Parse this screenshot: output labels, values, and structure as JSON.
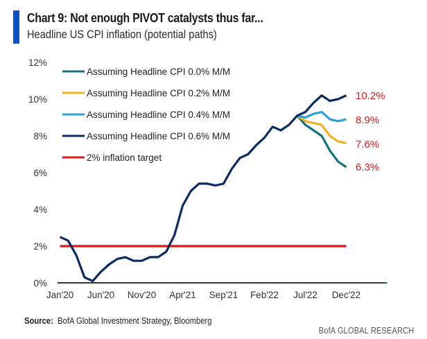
{
  "header": {
    "title": "Chart 9: Not enough PIVOT catalysts thus far...",
    "subtitle": "Headline US CPI inflation (potential paths)",
    "accent_color": "#0a52c8"
  },
  "footer": {
    "source_label": "Source:",
    "source_text": "BofA Global Investment Strategy, Bloomberg",
    "brand": "BofA GLOBAL RESEARCH"
  },
  "chart_data": {
    "type": "line",
    "title": "Chart 9: Not enough PIVOT catalysts thus far...",
    "subtitle": "Headline US CPI inflation (potential paths)",
    "xlabel": "",
    "ylabel": "",
    "ylim": [
      0,
      12
    ],
    "xlim_months": [
      0,
      40
    ],
    "x_ticks": [
      {
        "label": "Jan'20",
        "month": 0
      },
      {
        "label": "Jun'20",
        "month": 5
      },
      {
        "label": "Nov'20",
        "month": 10
      },
      {
        "label": "Apr'21",
        "month": 15
      },
      {
        "label": "Sep'21",
        "month": 20
      },
      {
        "label": "Feb'22",
        "month": 25
      },
      {
        "label": "Jul'22",
        "month": 30
      },
      {
        "label": "Dec'22",
        "month": 35
      }
    ],
    "y_ticks": [
      {
        "label": "0%",
        "value": 0
      },
      {
        "label": "2%",
        "value": 2
      },
      {
        "label": "4%",
        "value": 4
      },
      {
        "label": "6%",
        "value": 6
      },
      {
        "label": "8%",
        "value": 8
      },
      {
        "label": "10%",
        "value": 10
      },
      {
        "label": "12%",
        "value": 12
      }
    ],
    "grid": false,
    "legend_position": "top-left",
    "series": [
      {
        "name": "Assuming Headline CPI 0.0% M/M",
        "color": "#16707e",
        "start_month": 29,
        "values": [
          9.1,
          8.6,
          8.3,
          8.0,
          7.2,
          6.6,
          6.3
        ],
        "end_label": "6.3%"
      },
      {
        "name": "Assuming Headline CPI 0.2% M/M",
        "color": "#f0b323",
        "start_month": 29,
        "values": [
          9.1,
          8.8,
          8.7,
          8.6,
          8.0,
          7.7,
          7.6
        ],
        "end_label": "7.6%"
      },
      {
        "name": "Assuming Headline CPI 0.4% M/M",
        "color": "#2aa3d8",
        "start_month": 29,
        "values": [
          9.1,
          9.0,
          9.2,
          9.3,
          8.9,
          8.8,
          8.9
        ],
        "end_label": "8.9%"
      },
      {
        "name": "Assuming Headline CPI 0.6% M/M",
        "color": "#0b2a63",
        "start_month": 0,
        "values": [
          2.5,
          2.3,
          1.5,
          0.3,
          0.1,
          0.6,
          1.0,
          1.3,
          1.4,
          1.2,
          1.2,
          1.4,
          1.4,
          1.7,
          2.6,
          4.2,
          5.0,
          5.4,
          5.4,
          5.3,
          5.4,
          6.2,
          6.8,
          7.0,
          7.5,
          7.9,
          8.5,
          8.3,
          8.6,
          9.1,
          9.3,
          9.8,
          10.2,
          9.9,
          10.0,
          10.2
        ],
        "end_label": "10.2%"
      },
      {
        "name": "2% inflation target",
        "color": "#e0181c",
        "start_month": 0,
        "end_month": 35,
        "constant": 2.0
      }
    ],
    "end_labels_color": "#e0181c"
  }
}
